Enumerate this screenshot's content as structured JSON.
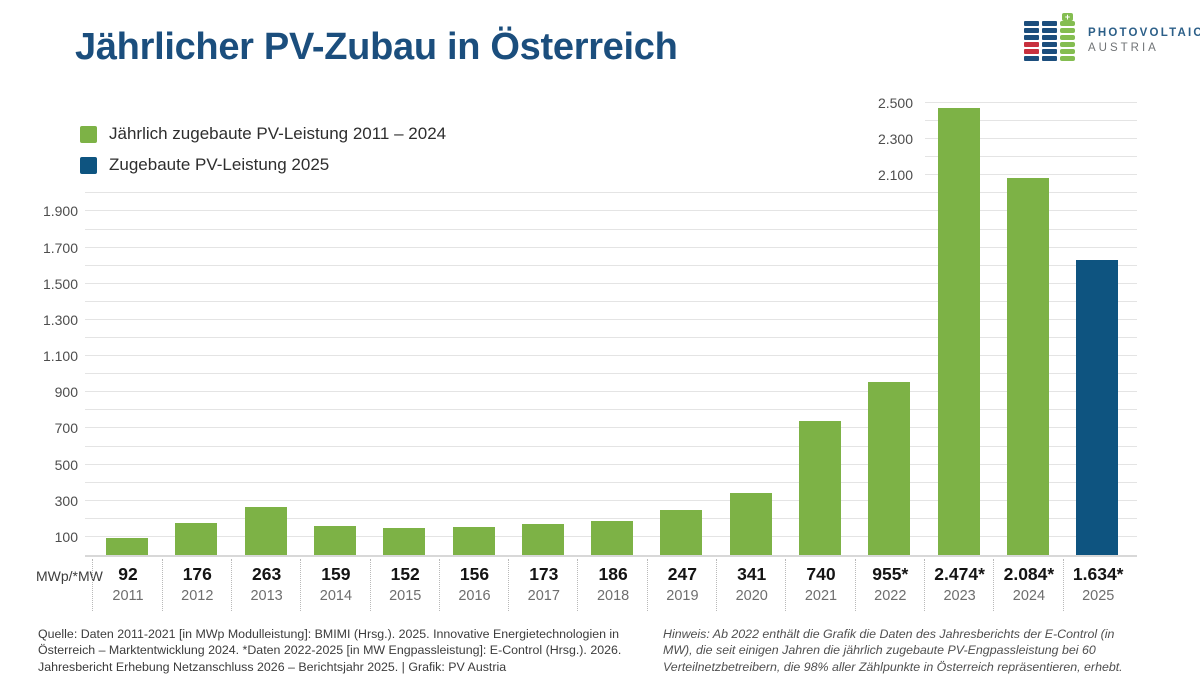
{
  "header": {
    "title": "Jährlicher PV-Zubau in Österreich",
    "logo": {
      "line1": "PHOTOVOLTAIC",
      "line2": "AUSTRIA"
    }
  },
  "legend": [
    {
      "label": "Jährlich zugebaute PV-Leistung 2011 – 2024",
      "color_key": "green"
    },
    {
      "label": "Zugebaute PV-Leistung 2025",
      "color_key": "blue"
    }
  ],
  "chart_data": {
    "type": "bar",
    "title": "Jährlicher PV-Zubau in Österreich",
    "unit_label": "MWp/*MW",
    "xlabel": "",
    "ylabel": "",
    "ylim": [
      0,
      2500
    ],
    "grid": true,
    "gridline_step": 100,
    "full_width_grid_max": 2000,
    "legend_position": "top-left",
    "categories": [
      "2011",
      "2012",
      "2013",
      "2014",
      "2015",
      "2016",
      "2017",
      "2018",
      "2019",
      "2020",
      "2021",
      "2022",
      "2023",
      "2024",
      "2025"
    ],
    "values": [
      92,
      176,
      263,
      159,
      152,
      156,
      173,
      186,
      247,
      341,
      740,
      955,
      2474,
      2084,
      1634
    ],
    "bars": [
      {
        "year": "2011",
        "value": 92,
        "label": "92",
        "color_key": "green"
      },
      {
        "year": "2012",
        "value": 176,
        "label": "176",
        "color_key": "green"
      },
      {
        "year": "2013",
        "value": 263,
        "label": "263",
        "color_key": "green"
      },
      {
        "year": "2014",
        "value": 159,
        "label": "159",
        "color_key": "green"
      },
      {
        "year": "2015",
        "value": 152,
        "label": "152",
        "color_key": "green"
      },
      {
        "year": "2016",
        "value": 156,
        "label": "156",
        "color_key": "green"
      },
      {
        "year": "2017",
        "value": 173,
        "label": "173",
        "color_key": "green"
      },
      {
        "year": "2018",
        "value": 186,
        "label": "186",
        "color_key": "green"
      },
      {
        "year": "2019",
        "value": 247,
        "label": "247",
        "color_key": "green"
      },
      {
        "year": "2020",
        "value": 341,
        "label": "341",
        "color_key": "green"
      },
      {
        "year": "2021",
        "value": 740,
        "label": "740",
        "color_key": "green"
      },
      {
        "year": "2022",
        "value": 955,
        "label": "955*",
        "color_key": "green"
      },
      {
        "year": "2023",
        "value": 2474,
        "label": "2.474*",
        "color_key": "green"
      },
      {
        "year": "2024",
        "value": 2084,
        "label": "2.084*",
        "color_key": "green"
      },
      {
        "year": "2025",
        "value": 1634,
        "label": "1.634*",
        "color_key": "blue"
      }
    ],
    "y_ticks_left": [
      {
        "value": 100,
        "label": "100"
      },
      {
        "value": 300,
        "label": "300"
      },
      {
        "value": 500,
        "label": "500"
      },
      {
        "value": 700,
        "label": "700"
      },
      {
        "value": 900,
        "label": "900"
      },
      {
        "value": 1100,
        "label": "1.100"
      },
      {
        "value": 1300,
        "label": "1.300"
      },
      {
        "value": 1500,
        "label": "1.500"
      },
      {
        "value": 1700,
        "label": "1.700"
      },
      {
        "value": 1900,
        "label": "1.900"
      }
    ],
    "y_ticks_right": [
      {
        "value": 2100,
        "label": "2.100"
      },
      {
        "value": 2300,
        "label": "2.300"
      },
      {
        "value": 2500,
        "label": "2.500"
      }
    ]
  },
  "footer": {
    "source": "Quelle: Daten 2011-2021 [in MWp Modulleistung]: BMIMI (Hrsg.). 2025. Innovative Energietechnologien in Österreich – Marktentwicklung 2024. *Daten 2022-2025 [in MW Engpassleistung]: E-Control (Hrsg.). 2026. Jahresbericht Erhebung Netzanschluss 2026 – Berichtsjahr 2025. | Grafik: PV Austria",
    "note": "Hinweis: Ab 2022 enthält die Grafik die Daten des Jahresberichts der E-Control (in MW), die seit einigen Jahren die jährlich zugebaute PV-Engpassleistung bei 60 Verteilnetzbetreibern, die 98% aller Zählpunkte in Österreich repräsentieren, erhebt."
  },
  "colors": {
    "green": "#7db246",
    "blue": "#0e5480",
    "title": "#1b4e7d",
    "gridline": "#e4e4e4"
  },
  "logo_icon": {
    "columns": [
      [
        "#1c4e7d",
        "#1c4e7d",
        "#1c4e7d",
        "#c8313e",
        "#c8313e",
        "#1c4e7d"
      ],
      [
        "#1c4e7d",
        "#1c4e7d",
        "#1c4e7d",
        "#1c4e7d",
        "#1c4e7d",
        "#1c4e7d"
      ],
      [
        "#84bd51",
        "#84bd51",
        "#84bd51",
        "#84bd51",
        "#84bd51",
        "#84bd51"
      ]
    ],
    "plus_glyph": "+"
  }
}
